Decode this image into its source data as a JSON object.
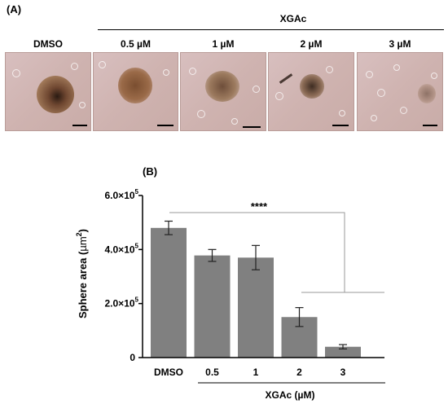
{
  "panel_a": {
    "label": "(A)",
    "group_label": "XGAc",
    "images": [
      {
        "label": "DMSO",
        "sphere_color": "#8a5a3c"
      },
      {
        "label": "0.5 µM",
        "sphere_color": "#9a6a48"
      },
      {
        "label": "1 µM",
        "sphere_color": "#9c7a5e"
      },
      {
        "label": "2 µM",
        "sphere_color": "#8c6c56"
      },
      {
        "label": "3 µM",
        "sphere_color": "#b5968a"
      }
    ]
  },
  "panel_b": {
    "label": "(B)",
    "significance": "****",
    "group_axis_label": "XGAc (µM)"
  },
  "chart_data": {
    "type": "bar",
    "categories": [
      "DMSO",
      "0.5",
      "1",
      "2",
      "3"
    ],
    "values": [
      480000,
      378000,
      370000,
      150000,
      40000
    ],
    "errors": [
      25000,
      22000,
      45000,
      35000,
      8000
    ],
    "ylabel": "Sphere area (µm²)",
    "ylabel_main": "Sphere area (",
    "ylabel_unit": "µm",
    "ylabel_sup": "2",
    "ylabel_close": ")",
    "ylim": [
      0,
      600000
    ],
    "yticks": [
      0,
      200000,
      400000,
      600000
    ],
    "ytick_labels": [
      "0",
      "2.0×10",
      "4.0×10",
      "6.0×10"
    ],
    "ytick_exponent": "5",
    "bar_color": "#808080"
  }
}
